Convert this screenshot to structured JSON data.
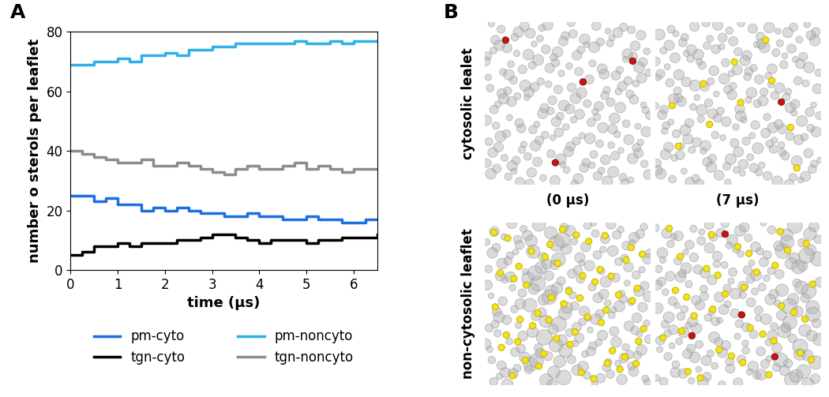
{
  "chart_data": {
    "type": "line",
    "panel": "A",
    "x": [
      0,
      0.25,
      0.5,
      0.75,
      1,
      1.25,
      1.5,
      1.75,
      2,
      2.25,
      2.5,
      2.75,
      3,
      3.25,
      3.5,
      3.75,
      4,
      4.25,
      4.5,
      4.75,
      5,
      5.25,
      5.5,
      5.75,
      6,
      6.25,
      6.5
    ],
    "series": [
      {
        "name": "pm-cyto",
        "color": "#1c6fe0",
        "line_style": "solid",
        "values": [
          25,
          25,
          23,
          24,
          22,
          22,
          20,
          21,
          20,
          21,
          20,
          19,
          19,
          18,
          18,
          19,
          18,
          18,
          17,
          17,
          18,
          17,
          17,
          16,
          16,
          17,
          17
        ]
      },
      {
        "name": "pm-noncyto",
        "color": "#2fb0e8",
        "line_style": "solid",
        "values": [
          69,
          69,
          70,
          70,
          71,
          70,
          72,
          72,
          73,
          72,
          74,
          74,
          75,
          75,
          76,
          76,
          76,
          76,
          76,
          77,
          76,
          76,
          77,
          76,
          77,
          77,
          77
        ]
      },
      {
        "name": "tgn-cyto",
        "color": "#000000",
        "line_style": "solid",
        "values": [
          5,
          6,
          8,
          8,
          9,
          8,
          9,
          9,
          9,
          10,
          10,
          11,
          12,
          12,
          11,
          10,
          9,
          10,
          10,
          10,
          9,
          10,
          10,
          11,
          11,
          11,
          12
        ]
      },
      {
        "name": "tgn-noncyto",
        "color": "#8c8c8c",
        "line_style": "solid",
        "values": [
          40,
          39,
          38,
          37,
          36,
          36,
          37,
          35,
          35,
          36,
          35,
          34,
          33,
          32,
          34,
          35,
          34,
          34,
          35,
          36,
          34,
          35,
          34,
          33,
          34,
          34,
          34
        ]
      }
    ],
    "x_label": "time (µs)",
    "y_label": "number o sterols per leaflet",
    "xlim": [
      0,
      6.5
    ],
    "xticks": [
      0,
      1,
      2,
      3,
      4,
      5,
      6
    ],
    "ylim": [
      0,
      80
    ],
    "yticks": [
      0,
      20,
      40,
      60,
      80
    ],
    "grid": false,
    "legend": "bottom"
  },
  "panel_B": {
    "panel": "B",
    "rows": [
      "cytosolic lealet",
      "non-cytosolic leaflet"
    ],
    "columns": [
      "(0 µs)",
      "(7 µs)"
    ],
    "cells": [
      [
        {
          "yellow": 0,
          "red": 4
        },
        {
          "yellow": 10,
          "red": 1
        }
      ],
      [
        {
          "yellow": 55,
          "red": 0
        },
        {
          "yellow": 35,
          "red": 4
        }
      ]
    ]
  }
}
